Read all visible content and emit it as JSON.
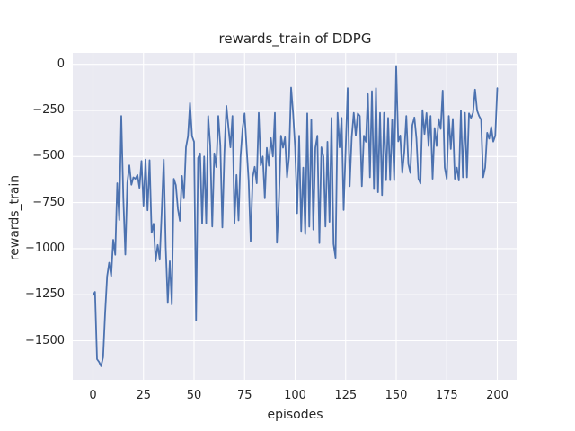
{
  "colors": {
    "figure_bg": "#ffffff",
    "axes_bg": "#eaeaf2",
    "grid": "#ffffff",
    "line": "#4c72b0",
    "text": "#262626"
  },
  "chart_data": {
    "type": "line",
    "title": "rewards_train of DDPG",
    "xlabel": "episodes",
    "ylabel": "rewards_train",
    "legend": "none",
    "grid": true,
    "xlim": [
      -10,
      210
    ],
    "ylim": [
      -1712,
      62
    ],
    "x_ticks": [
      0,
      25,
      50,
      75,
      100,
      125,
      150,
      175,
      200
    ],
    "x_tick_labels": [
      "0",
      "25",
      "50",
      "75",
      "100",
      "125",
      "150",
      "175",
      "200"
    ],
    "y_ticks": [
      0,
      -250,
      -500,
      -750,
      -1000,
      -1250,
      -1500
    ],
    "y_tick_labels": [
      "0",
      "−250",
      "−500",
      "−750",
      "−1000",
      "−1250",
      "−1500"
    ],
    "series": [
      {
        "name": "rewards_train",
        "x_start": 0,
        "x_step": 1,
        "values": [
          -1252,
          -1235,
          -1600,
          -1615,
          -1638,
          -1590,
          -1350,
          -1150,
          -1076,
          -1149,
          -952,
          -1033,
          -645,
          -845,
          -280,
          -720,
          -1032,
          -642,
          -548,
          -653,
          -613,
          -621,
          -600,
          -670,
          -524,
          -767,
          -516,
          -792,
          -520,
          -914,
          -865,
          -1068,
          -980,
          -1060,
          -800,
          -516,
          -995,
          -1295,
          -1068,
          -1303,
          -621,
          -655,
          -784,
          -849,
          -605,
          -727,
          -450,
          -390,
          -210,
          -389,
          -420,
          -1390,
          -508,
          -483,
          -863,
          -500,
          -863,
          -280,
          -440,
          -880,
          -483,
          -557,
          -280,
          -440,
          -885,
          -480,
          -225,
          -340,
          -450,
          -280,
          -863,
          -600,
          -847,
          -500,
          -350,
          -266,
          -452,
          -629,
          -960,
          -613,
          -556,
          -645,
          -263,
          -548,
          -500,
          -727,
          -453,
          -550,
          -400,
          -500,
          -263,
          -968,
          -734,
          -387,
          -452,
          -395,
          -613,
          -500,
          -126,
          -266,
          -452,
          -808,
          -387,
          -905,
          -560,
          -921,
          -266,
          -881,
          -300,
          -897,
          -452,
          -387,
          -970,
          -450,
          -500,
          -880,
          -420,
          -855,
          -290,
          -975,
          -1050,
          -263,
          -450,
          -290,
          -790,
          -460,
          -129,
          -661,
          -395,
          -263,
          -387,
          -266,
          -280,
          -661,
          -387,
          -420,
          -161,
          -613,
          -145,
          -677,
          -129,
          -694,
          -263,
          -710,
          -263,
          -629,
          -290,
          -629,
          -300,
          -629,
          -8,
          -418,
          -386,
          -589,
          -475,
          -280,
          -540,
          -589,
          -329,
          -288,
          -402,
          -621,
          -646,
          -248,
          -378,
          -264,
          -443,
          -280,
          -621,
          -345,
          -443,
          -296,
          -350,
          -142,
          -560,
          -621,
          -280,
          -459,
          -296,
          -621,
          -560,
          -630,
          -250,
          -613,
          -263,
          -613,
          -266,
          -290,
          -263,
          -137,
          -250,
          -280,
          -300,
          -613,
          -560,
          -371,
          -403,
          -339,
          -419,
          -387,
          -129
        ]
      }
    ]
  }
}
